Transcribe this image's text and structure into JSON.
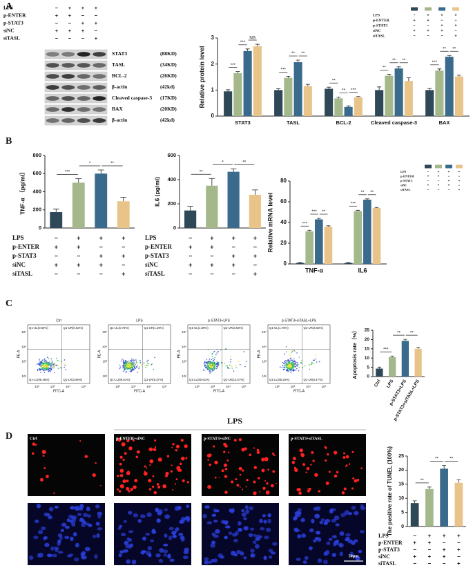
{
  "panel_labels": [
    "A",
    "B",
    "C",
    "D"
  ],
  "conditions": {
    "rows": [
      {
        "label": "LPS",
        "marks": [
          "−",
          "+",
          "+",
          "+"
        ]
      },
      {
        "label": "p-ENTER",
        "marks": [
          "+",
          "+",
          "−",
          "−"
        ]
      },
      {
        "label": "p-STAT3",
        "marks": [
          "−",
          "−",
          "+",
          "+"
        ]
      },
      {
        "label": "siNC",
        "marks": [
          "+",
          "+",
          "+",
          "−"
        ]
      },
      {
        "label": "siTASL",
        "marks": [
          "−",
          "−",
          "−",
          "+"
        ]
      }
    ]
  },
  "blots": [
    {
      "name": "STAT3",
      "size": "(88KD)"
    },
    {
      "name": "TASL",
      "size": "(34KD)"
    },
    {
      "name": "BCL-2",
      "size": "(26KD)"
    },
    {
      "name": "β-actin",
      "size": "(42kd)"
    },
    {
      "name": "Cleaved caspase-3",
      "size": "(17KD)"
    },
    {
      "name": "BAX",
      "size": "(20KD)"
    },
    {
      "name": "β-actin",
      "size": "(42kd)"
    }
  ],
  "flow": {
    "titles": [
      "Ctrl",
      "LPS",
      "p-STAT3+LPS",
      "p-STAT3+siTASL+LPS"
    ],
    "quadrants": [
      [
        "Q1-UL(0.69%)",
        "Q1-UR(0.62%)",
        "Q1-LL(95.46%)",
        "Q1-LR(2.96%)"
      ],
      [
        "Q1-UL(0.78%)",
        "Q1-UR(1.29%)",
        "Q1-LL(89.61%)",
        "Q1-LR(8.37%)"
      ],
      [
        "Q1-UL(1.89%)",
        "Q1-UR(3.93%)",
        "Q1-LL(80.61%)",
        "Q1-LR(13.57%)"
      ],
      [
        "Q1-UL(1.70%)",
        "Q1-UR(4.63%)",
        "Q1-LL(85.20%)",
        "Q1-LR(8.47%)"
      ]
    ],
    "x_label": "FITC-A",
    "y_label": "PE-A",
    "ticks": [
      "10²",
      "10³",
      "10⁴",
      "10⁵"
    ]
  },
  "tunel": {
    "header": "LPS",
    "labels": [
      "Ctrl",
      "p-ENTER+siNC",
      "p-STAT3+siNC",
      "p-STAT3+siTASL"
    ],
    "scale": "50μm"
  },
  "chart_data": [
    {
      "type": "grouped_bar",
      "y_label": "Relative protein level",
      "categories": [
        "STAT3",
        "TASL",
        "BCL-2",
        "Cleaved caspase-3",
        "BAX"
      ],
      "series": [
        {
          "color": "#2f4858",
          "values": [
            0.95,
            1.0,
            1.05,
            1.0,
            1.0
          ],
          "errors": [
            0.06,
            0.05,
            0.06,
            0.12,
            0.06
          ]
        },
        {
          "color": "#a5b88c",
          "values": [
            1.65,
            1.47,
            0.68,
            1.55,
            1.75
          ],
          "errors": [
            0.06,
            0.06,
            0.05,
            0.06,
            0.06
          ]
        },
        {
          "color": "#3a6b8c",
          "values": [
            2.5,
            2.07,
            0.35,
            1.83,
            2.28
          ],
          "errors": [
            0.08,
            0.08,
            0.04,
            0.06,
            0.05
          ]
        },
        {
          "color": "#e9c48a",
          "values": [
            2.68,
            1.15,
            0.72,
            1.35,
            1.52
          ],
          "errors": [
            0.08,
            0.07,
            0.03,
            0.12,
            0.05
          ]
        }
      ],
      "ylim": [
        0,
        3
      ],
      "yticks": [
        0,
        1,
        2,
        3
      ],
      "significance": [
        [
          "***",
          "***",
          "NS"
        ],
        [
          "***",
          "**",
          "**"
        ],
        [
          "**",
          "**",
          "***"
        ],
        [
          "**",
          "**",
          "**"
        ],
        [
          "***",
          "**",
          "**"
        ]
      ]
    },
    {
      "type": "bar",
      "y_label": "TNF-α （pg/ml）",
      "values": [
        175,
        500,
        600,
        295
      ],
      "errors": [
        35,
        45,
        40,
        45
      ],
      "colors": [
        "#2f4858",
        "#a5b88c",
        "#3a6b8c",
        "#e9c48a"
      ],
      "ylim": [
        0,
        800
      ],
      "yticks": [
        0,
        200,
        400,
        600,
        800
      ],
      "significance": [
        "***",
        "*",
        "**"
      ]
    },
    {
      "type": "bar",
      "y_label": "IL6 (pg/ml)",
      "values": [
        145,
        350,
        465,
        275
      ],
      "errors": [
        35,
        60,
        25,
        40
      ],
      "colors": [
        "#2f4858",
        "#a5b88c",
        "#3a6b8c",
        "#e9c48a"
      ],
      "ylim": [
        0,
        600
      ],
      "yticks": [
        0,
        200,
        400,
        600
      ],
      "significance": [
        "**",
        "*",
        "**"
      ]
    },
    {
      "type": "grouped_bar",
      "y_label": "Relative mRNA level",
      "categories": [
        "TNF-α",
        "IL6"
      ],
      "series": [
        {
          "color": "#2f4858",
          "values": [
            1,
            1
          ],
          "errors": [
            0.3,
            0.3
          ]
        },
        {
          "color": "#a5b88c",
          "values": [
            31.5,
            51
          ],
          "errors": [
            1,
            0.8
          ]
        },
        {
          "color": "#3a6b8c",
          "values": [
            43,
            62
          ],
          "errors": [
            1,
            0.8
          ]
        },
        {
          "color": "#e9c48a",
          "values": [
            36,
            54
          ],
          "errors": [
            0.8,
            0.5
          ]
        }
      ],
      "ylim": [
        0,
        80
      ],
      "yticks": [
        0,
        20,
        40,
        60,
        80
      ],
      "significance": [
        [
          "***",
          "***",
          "**"
        ],
        [
          "***",
          "**",
          "**"
        ]
      ]
    },
    {
      "type": "bar",
      "y_label": "Apoptosis rate（%）",
      "categories": [
        "Ctrl",
        "LPS",
        "p-STAT3+LPS",
        "p-STAT3+siTASL+LPS"
      ],
      "values": [
        4.3,
        10.5,
        19.3,
        15
      ],
      "errors": [
        0.8,
        0.6,
        0.8,
        0.8
      ],
      "colors": [
        "#2f4858",
        "#a5b88c",
        "#3a6b8c",
        "#e9c48a"
      ],
      "ylim": [
        0,
        25
      ],
      "yticks": [
        0,
        5,
        10,
        15,
        20,
        25
      ],
      "significance": [
        "***",
        "**",
        "**"
      ]
    },
    {
      "type": "bar",
      "y_label": "The positive rate of TUNEL (100%)",
      "values": [
        8.3,
        13.3,
        20.5,
        15.5
      ],
      "errors": [
        0.8,
        0.7,
        1.2,
        1.1
      ],
      "colors": [
        "#2f4858",
        "#a5b88c",
        "#3a6b8c",
        "#e9c48a"
      ],
      "ylim": [
        0,
        25
      ],
      "yticks": [
        0,
        5,
        10,
        15,
        20,
        25
      ],
      "significance": [
        "**",
        "**",
        "**"
      ]
    }
  ]
}
